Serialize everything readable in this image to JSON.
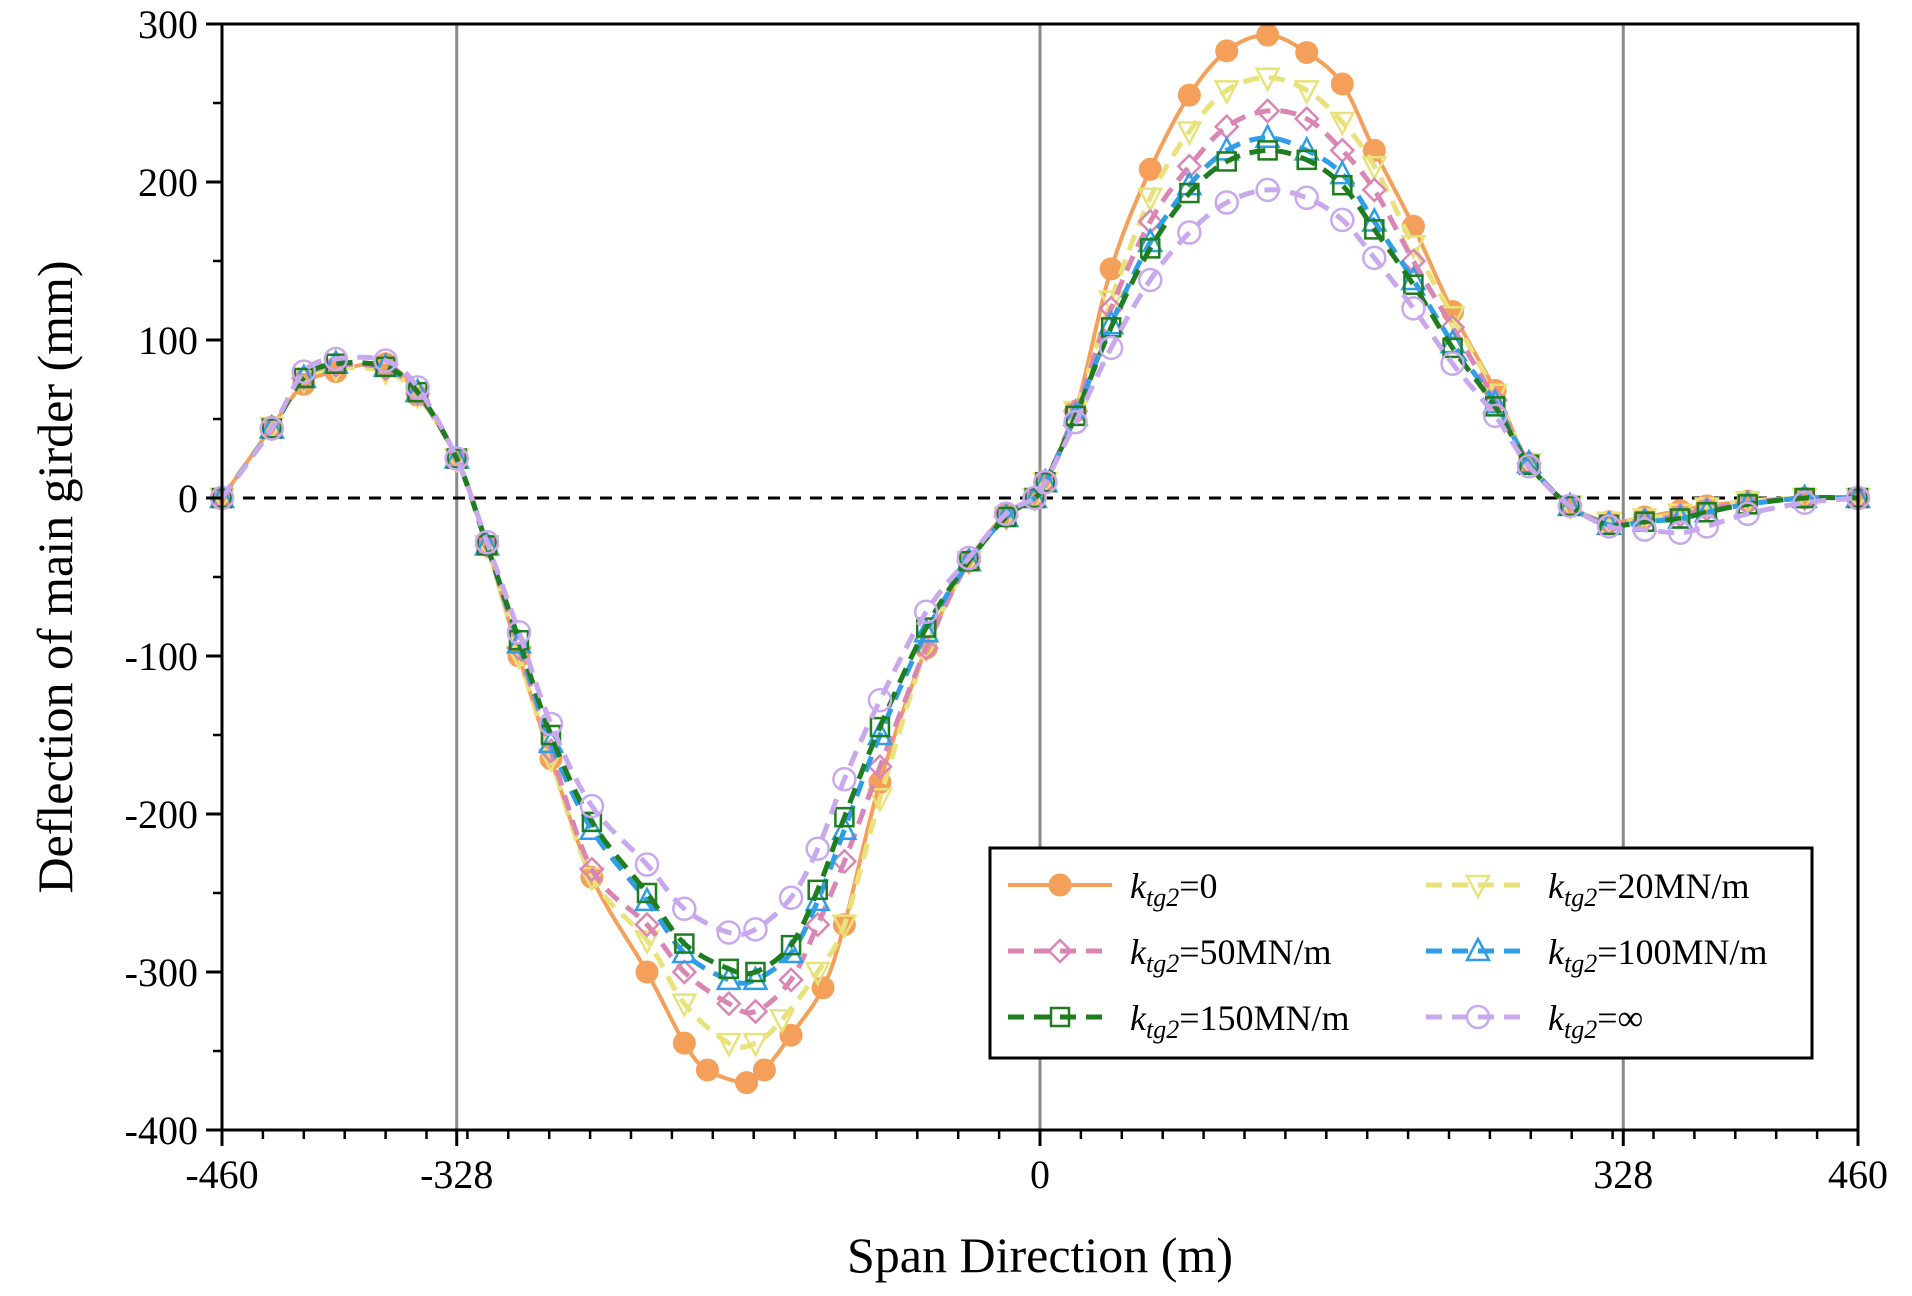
{
  "chart_data": {
    "type": "line",
    "xlabel": "Span Direction (m)",
    "ylabel": "Deflection of main girder (mm)",
    "xlim": [
      -460,
      460
    ],
    "ylim": [
      -400,
      300
    ],
    "xticks": [
      -460,
      -328,
      0,
      328,
      460
    ],
    "yticks": [
      300,
      200,
      100,
      0,
      -100,
      -200,
      -300,
      -400
    ],
    "xtick_labels": [
      "-460",
      "-328",
      "0",
      "328",
      "460"
    ],
    "ytick_labels": [
      "300",
      "200",
      "100",
      "0",
      "-100",
      "-200",
      "-300",
      "-400"
    ],
    "vertical_reference_lines": [
      -328,
      0,
      328
    ],
    "zero_line": "dashed",
    "grid": false,
    "legend_position": "bottom-right",
    "legend_prefix": "k",
    "legend_subscript": "tg2",
    "series": [
      {
        "name": "k_tg2=0",
        "legend_value": "=0",
        "color": "#f4a05a",
        "line_style": "solid",
        "marker": "filled-circle",
        "x": [
          -460,
          -432,
          -414,
          -396,
          -368,
          -350,
          -328,
          -311,
          -293,
          -275,
          -252,
          -221,
          -200,
          -187,
          -165,
          -155,
          -140,
          -122,
          -110,
          -90,
          -64,
          -40,
          -19,
          -3,
          3,
          20,
          40,
          62,
          84,
          105,
          128,
          150,
          170,
          188,
          210,
          232,
          256,
          275,
          298,
          320,
          340,
          360,
          375,
          398,
          430,
          460
        ],
        "y": [
          0,
          45,
          72,
          80,
          85,
          65,
          25,
          -30,
          -100,
          -165,
          -240,
          -300,
          -345,
          -362,
          -370,
          -362,
          -340,
          -310,
          -270,
          -180,
          -95,
          -40,
          -10,
          0,
          10,
          55,
          145,
          208,
          255,
          283,
          293,
          282,
          262,
          220,
          172,
          118,
          68,
          22,
          -5,
          -15,
          -12,
          -8,
          -5,
          -2,
          0,
          0
        ]
      },
      {
        "name": "k_tg2=20MN/m",
        "legend_value": "=20MN/m",
        "color": "#e9e27a",
        "line_style": "dashed",
        "marker": "open-triangle-down",
        "x": [
          -460,
          -432,
          -414,
          -396,
          -368,
          -350,
          -328,
          -311,
          -293,
          -275,
          -252,
          -221,
          -200,
          -175,
          -160,
          -145,
          -125,
          -110,
          -90,
          -64,
          -40,
          -19,
          -3,
          3,
          20,
          40,
          62,
          84,
          105,
          128,
          150,
          170,
          188,
          210,
          232,
          256,
          275,
          298,
          320,
          340,
          360,
          375,
          398,
          430,
          460
        ],
        "y": [
          0,
          45,
          75,
          82,
          80,
          65,
          25,
          -30,
          -100,
          -165,
          -240,
          -280,
          -320,
          -345,
          -345,
          -330,
          -300,
          -270,
          -190,
          -95,
          -40,
          -12,
          0,
          10,
          55,
          125,
          190,
          232,
          258,
          266,
          258,
          238,
          210,
          160,
          115,
          66,
          22,
          -5,
          -15,
          -13,
          -10,
          -6,
          -2,
          0,
          0
        ]
      },
      {
        "name": "k_tg2=50MN/m",
        "legend_value": "=50MN/m",
        "color": "#d986b4",
        "line_style": "dashed",
        "marker": "open-diamond",
        "x": [
          -460,
          -432,
          -414,
          -396,
          -368,
          -350,
          -328,
          -311,
          -293,
          -275,
          -252,
          -221,
          -200,
          -175,
          -160,
          -140,
          -125,
          -110,
          -90,
          -64,
          -40,
          -19,
          -3,
          3,
          20,
          40,
          62,
          84,
          105,
          128,
          150,
          170,
          188,
          210,
          232,
          256,
          275,
          298,
          320,
          340,
          360,
          375,
          398,
          430,
          460
        ],
        "y": [
          0,
          44,
          76,
          84,
          82,
          66,
          25,
          -30,
          -95,
          -160,
          -235,
          -270,
          -300,
          -320,
          -325,
          -305,
          -270,
          -230,
          -170,
          -95,
          -40,
          -12,
          0,
          10,
          55,
          120,
          175,
          210,
          235,
          245,
          240,
          220,
          195,
          150,
          108,
          62,
          22,
          -5,
          -16,
          -14,
          -11,
          -7,
          -3,
          0,
          0
        ]
      },
      {
        "name": "k_tg2=100MN/m",
        "legend_value": "=100MN/m",
        "color": "#2f9ee6",
        "line_style": "dashed",
        "marker": "open-triangle-up",
        "x": [
          -460,
          -432,
          -414,
          -396,
          -368,
          -350,
          -328,
          -311,
          -293,
          -275,
          -252,
          -221,
          -200,
          -175,
          -160,
          -140,
          -125,
          -110,
          -90,
          -64,
          -40,
          -19,
          -3,
          3,
          20,
          40,
          62,
          84,
          105,
          128,
          150,
          170,
          188,
          210,
          232,
          256,
          275,
          298,
          320,
          340,
          360,
          375,
          398,
          430,
          460
        ],
        "y": [
          0,
          44,
          76,
          85,
          83,
          67,
          25,
          -30,
          -92,
          -155,
          -210,
          -255,
          -288,
          -305,
          -305,
          -288,
          -255,
          -210,
          -150,
          -85,
          -40,
          -12,
          0,
          10,
          52,
          110,
          162,
          198,
          220,
          228,
          220,
          205,
          175,
          138,
          98,
          60,
          22,
          -5,
          -17,
          -15,
          -13,
          -9,
          -4,
          0,
          0
        ]
      },
      {
        "name": "k_tg2=150MN/m",
        "legend_value": "=150MN/m",
        "color": "#1e7d1e",
        "line_style": "dashed",
        "marker": "open-square",
        "x": [
          -460,
          -432,
          -414,
          -396,
          -368,
          -350,
          -328,
          -311,
          -293,
          -275,
          -252,
          -221,
          -200,
          -175,
          -160,
          -140,
          -125,
          -110,
          -90,
          -64,
          -40,
          -19,
          -3,
          3,
          20,
          40,
          62,
          84,
          105,
          128,
          150,
          170,
          188,
          210,
          232,
          256,
          275,
          298,
          320,
          340,
          360,
          375,
          398,
          430,
          460
        ],
        "y": [
          0,
          44,
          76,
          85,
          83,
          67,
          25,
          -30,
          -90,
          -150,
          -205,
          -250,
          -282,
          -298,
          -300,
          -283,
          -248,
          -202,
          -145,
          -82,
          -40,
          -12,
          0,
          10,
          52,
          108,
          158,
          193,
          213,
          220,
          214,
          198,
          170,
          135,
          95,
          58,
          21,
          -5,
          -17,
          -15,
          -13,
          -9,
          -4,
          0,
          0
        ]
      },
      {
        "name": "k_tg2=∞",
        "legend_value": "=∞",
        "color": "#c9a8ee",
        "line_style": "dashed",
        "marker": "open-circle",
        "x": [
          -460,
          -432,
          -414,
          -396,
          -368,
          -350,
          -328,
          -311,
          -293,
          -275,
          -252,
          -221,
          -200,
          -175,
          -160,
          -140,
          -125,
          -110,
          -90,
          -64,
          -40,
          -19,
          -3,
          3,
          20,
          40,
          62,
          84,
          105,
          128,
          150,
          170,
          188,
          210,
          232,
          256,
          275,
          298,
          320,
          340,
          360,
          375,
          398,
          430,
          460
        ],
        "y": [
          0,
          44,
          80,
          88,
          87,
          70,
          25,
          -28,
          -85,
          -143,
          -195,
          -232,
          -260,
          -275,
          -273,
          -253,
          -222,
          -178,
          -128,
          -72,
          -38,
          -10,
          0,
          10,
          48,
          95,
          138,
          168,
          187,
          195,
          190,
          176,
          152,
          120,
          85,
          52,
          20,
          -5,
          -18,
          -20,
          -22,
          -18,
          -10,
          -3,
          0
        ]
      }
    ]
  }
}
